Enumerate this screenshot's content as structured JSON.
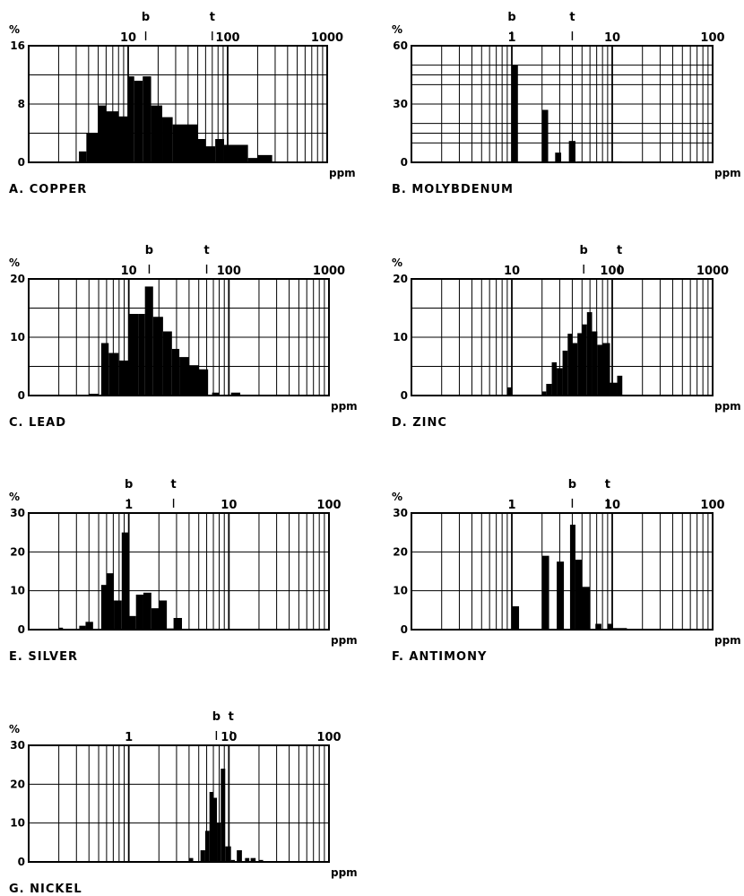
{
  "chart_data": [
    {
      "type": "bar",
      "title": "A. COPPER",
      "ylabel": "%",
      "xlabel": "ppm",
      "x_scale": "log",
      "xlim": [
        1,
        1000
      ],
      "ylim": [
        0,
        16
      ],
      "ytick_labels": [
        "0",
        "8",
        "16"
      ],
      "ytick_values": [
        0,
        8,
        16
      ],
      "xtick_labels": [
        "10",
        "100",
        "1000"
      ],
      "xtick_values": [
        10,
        100,
        1000
      ],
      "markers": [
        {
          "label": "b",
          "x": 15
        },
        {
          "label": "t",
          "x": 70
        }
      ],
      "bins": [
        {
          "x0": 3.2,
          "x1": 3.8,
          "y": 1.5
        },
        {
          "x0": 3.8,
          "x1": 5.0,
          "y": 4
        },
        {
          "x0": 5.0,
          "x1": 6.0,
          "y": 7.8
        },
        {
          "x0": 6.0,
          "x1": 8.0,
          "y": 7
        },
        {
          "x0": 8.0,
          "x1": 10,
          "y": 6.3
        },
        {
          "x0": 10,
          "x1": 11.5,
          "y": 11.8
        },
        {
          "x0": 11.5,
          "x1": 14,
          "y": 11.2
        },
        {
          "x0": 14,
          "x1": 17,
          "y": 11.8
        },
        {
          "x0": 17,
          "x1": 22,
          "y": 7.8
        },
        {
          "x0": 22,
          "x1": 28,
          "y": 6.2
        },
        {
          "x0": 28,
          "x1": 50,
          "y": 5.2
        },
        {
          "x0": 50,
          "x1": 60,
          "y": 3.2
        },
        {
          "x0": 60,
          "x1": 75,
          "y": 2.2
        },
        {
          "x0": 75,
          "x1": 92,
          "y": 3.2
        },
        {
          "x0": 92,
          "x1": 160,
          "y": 2.4
        },
        {
          "x0": 160,
          "x1": 200,
          "y": 0.6
        },
        {
          "x0": 200,
          "x1": 280,
          "y": 1.0
        }
      ]
    },
    {
      "type": "bar",
      "title": "B. MOLYBDENUM",
      "ylabel": "%",
      "xlabel": "ppm",
      "x_scale": "log",
      "xlim": [
        0.1,
        100
      ],
      "ylim": [
        0,
        60
      ],
      "ytick_labels": [
        "0",
        "30",
        "60"
      ],
      "ytick_values": [
        0,
        30,
        60
      ],
      "xtick_labels": [
        "1",
        "10",
        "100"
      ],
      "xtick_values": [
        1,
        10,
        100
      ],
      "markers": [
        {
          "label": "b",
          "x": 1.0
        },
        {
          "label": "t",
          "x": 4.0
        }
      ],
      "bins": [
        {
          "x0": 1.0,
          "x1": 1.15,
          "y": 50
        },
        {
          "x0": 2.0,
          "x1": 2.3,
          "y": 27
        },
        {
          "x0": 2.7,
          "x1": 3.1,
          "y": 5
        },
        {
          "x0": 3.7,
          "x1": 4.3,
          "y": 11
        },
        {
          "x0": 4.5,
          "x1": 9.8,
          "y": 0.5
        },
        {
          "x0": 10.2,
          "x1": 12.5,
          "y": 0.5
        }
      ]
    },
    {
      "type": "bar",
      "title": "C. LEAD",
      "ylabel": "%",
      "xlabel": "ppm",
      "x_scale": "log",
      "xlim": [
        1,
        1000
      ],
      "ylim": [
        0,
        20
      ],
      "ytick_labels": [
        "0",
        "10",
        "20"
      ],
      "ytick_values": [
        0,
        10,
        20
      ],
      "xtick_labels": [
        "10",
        "100",
        "1000"
      ],
      "xtick_values": [
        10,
        100,
        1000
      ],
      "markers": [
        {
          "label": "b",
          "x": 16
        },
        {
          "label": "t",
          "x": 60
        }
      ],
      "bins": [
        {
          "x0": 4.0,
          "x1": 5.0,
          "y": 0.3
        },
        {
          "x0": 5.3,
          "x1": 6.3,
          "y": 9
        },
        {
          "x0": 6.3,
          "x1": 7.9,
          "y": 7.3
        },
        {
          "x0": 7.9,
          "x1": 10,
          "y": 6
        },
        {
          "x0": 10,
          "x1": 12.6,
          "y": 14
        },
        {
          "x0": 12.6,
          "x1": 14.5,
          "y": 14
        },
        {
          "x0": 14.5,
          "x1": 17.5,
          "y": 18.7
        },
        {
          "x0": 17.5,
          "x1": 22,
          "y": 13.5
        },
        {
          "x0": 22,
          "x1": 27,
          "y": 11
        },
        {
          "x0": 27,
          "x1": 32,
          "y": 8
        },
        {
          "x0": 32,
          "x1": 40,
          "y": 6.6
        },
        {
          "x0": 40,
          "x1": 50,
          "y": 5.2
        },
        {
          "x0": 50,
          "x1": 62,
          "y": 4.5
        },
        {
          "x0": 68,
          "x1": 80,
          "y": 0.5
        },
        {
          "x0": 105,
          "x1": 130,
          "y": 0.5
        }
      ]
    },
    {
      "type": "bar",
      "title": "D. ZINC",
      "ylabel": "%",
      "xlabel": "ppm",
      "x_scale": "log",
      "xlim": [
        1,
        1000
      ],
      "ylim": [
        0,
        20
      ],
      "ytick_labels": [
        "0",
        "10",
        "20"
      ],
      "ytick_values": [
        0,
        10,
        20
      ],
      "xtick_labels": [
        "10",
        "100",
        "1000"
      ],
      "xtick_values": [
        10,
        100,
        1000
      ],
      "markers": [
        {
          "label": "b",
          "x": 52
        },
        {
          "label": "t",
          "x": 118
        }
      ],
      "bins": [
        {
          "x0": 9.0,
          "x1": 10,
          "y": 1.4
        },
        {
          "x0": 20,
          "x1": 22,
          "y": 0.7
        },
        {
          "x0": 22,
          "x1": 25,
          "y": 2
        },
        {
          "x0": 25,
          "x1": 28,
          "y": 5.7
        },
        {
          "x0": 28,
          "x1": 32,
          "y": 4.7
        },
        {
          "x0": 32,
          "x1": 36,
          "y": 7.7
        },
        {
          "x0": 36,
          "x1": 40,
          "y": 10.6
        },
        {
          "x0": 40,
          "x1": 45,
          "y": 9
        },
        {
          "x0": 45,
          "x1": 50,
          "y": 10.7
        },
        {
          "x0": 50,
          "x1": 56,
          "y": 12.2
        },
        {
          "x0": 56,
          "x1": 63,
          "y": 14.3
        },
        {
          "x0": 63,
          "x1": 71,
          "y": 11
        },
        {
          "x0": 71,
          "x1": 80,
          "y": 8.7
        },
        {
          "x0": 80,
          "x1": 95,
          "y": 9
        },
        {
          "x0": 95,
          "x1": 112,
          "y": 2.2
        },
        {
          "x0": 112,
          "x1": 126,
          "y": 3.4
        }
      ]
    },
    {
      "type": "bar",
      "title": "E. SILVER",
      "ylabel": "%",
      "xlabel": "ppm",
      "x_scale": "log",
      "xlim": [
        0.1,
        100
      ],
      "ylim": [
        0,
        30
      ],
      "ytick_labels": [
        "0",
        "10",
        "20",
        "30"
      ],
      "ytick_values": [
        0,
        10,
        20,
        30
      ],
      "xtick_labels": [
        "1",
        "10",
        "100"
      ],
      "xtick_values": [
        1,
        10,
        100
      ],
      "markers": [
        {
          "label": "b",
          "x": 1.0
        },
        {
          "label": "t",
          "x": 2.8
        }
      ],
      "bins": [
        {
          "x0": 0.2,
          "x1": 0.22,
          "y": 0.5
        },
        {
          "x0": 0.32,
          "x1": 0.37,
          "y": 1
        },
        {
          "x0": 0.37,
          "x1": 0.44,
          "y": 2
        },
        {
          "x0": 0.53,
          "x1": 0.6,
          "y": 11.5
        },
        {
          "x0": 0.6,
          "x1": 0.71,
          "y": 14.5
        },
        {
          "x0": 0.71,
          "x1": 0.85,
          "y": 7.5
        },
        {
          "x0": 0.85,
          "x1": 1.0,
          "y": 25
        },
        {
          "x0": 1.0,
          "x1": 1.18,
          "y": 3.5
        },
        {
          "x0": 1.18,
          "x1": 1.4,
          "y": 9
        },
        {
          "x0": 1.4,
          "x1": 1.68,
          "y": 9.5
        },
        {
          "x0": 1.68,
          "x1": 2.0,
          "y": 5.5
        },
        {
          "x0": 2.0,
          "x1": 2.4,
          "y": 7.5
        },
        {
          "x0": 2.4,
          "x1": 2.8,
          "y": 0.3
        },
        {
          "x0": 2.8,
          "x1": 3.4,
          "y": 3
        }
      ]
    },
    {
      "type": "bar",
      "title": "F. ANTIMONY",
      "ylabel": "%",
      "xlabel": "ppm",
      "x_scale": "log",
      "xlim": [
        0.1,
        100
      ],
      "ylim": [
        0,
        30
      ],
      "ytick_labels": [
        "0",
        "10",
        "20",
        "30"
      ],
      "ytick_values": [
        0,
        10,
        20,
        30
      ],
      "xtick_labels": [
        "1",
        "10",
        "100"
      ],
      "xtick_values": [
        1,
        10,
        100
      ],
      "markers": [
        {
          "label": "b",
          "x": 4.0
        },
        {
          "label": "t",
          "x": 9.0
        }
      ],
      "bins": [
        {
          "x0": 0.1,
          "x1": 0.12,
          "y": 0.2
        },
        {
          "x0": 1.0,
          "x1": 1.18,
          "y": 6
        },
        {
          "x0": 2.0,
          "x1": 2.35,
          "y": 19
        },
        {
          "x0": 2.8,
          "x1": 3.3,
          "y": 17.5
        },
        {
          "x0": 3.8,
          "x1": 4.3,
          "y": 27
        },
        {
          "x0": 4.3,
          "x1": 5.0,
          "y": 18
        },
        {
          "x0": 5.0,
          "x1": 6.0,
          "y": 11
        },
        {
          "x0": 6.8,
          "x1": 7.8,
          "y": 1.5
        },
        {
          "x0": 9.0,
          "x1": 10.2,
          "y": 1.5
        },
        {
          "x0": 10.2,
          "x1": 14,
          "y": 0.4
        }
      ]
    },
    {
      "type": "bar",
      "title": "G. NICKEL",
      "ylabel": "%",
      "xlabel": "ppm",
      "x_scale": "log",
      "xlim": [
        0.1,
        100
      ],
      "ylim": [
        0,
        30
      ],
      "ytick_labels": [
        "0",
        "10",
        "20",
        "30"
      ],
      "ytick_values": [
        0,
        10,
        20,
        30
      ],
      "xtick_labels": [
        "1",
        "10",
        "100"
      ],
      "xtick_values": [
        1,
        10,
        100
      ],
      "markers": [
        {
          "label": "b",
          "x": 7.5
        },
        {
          "label": "t",
          "x": 10.5
        }
      ],
      "bins": [
        {
          "x0": 4.0,
          "x1": 4.4,
          "y": 1
        },
        {
          "x0": 5.2,
          "x1": 5.8,
          "y": 3
        },
        {
          "x0": 5.8,
          "x1": 6.4,
          "y": 8
        },
        {
          "x0": 6.4,
          "x1": 7.0,
          "y": 18
        },
        {
          "x0": 7.0,
          "x1": 7.6,
          "y": 16.5
        },
        {
          "x0": 7.6,
          "x1": 8.3,
          "y": 10
        },
        {
          "x0": 8.3,
          "x1": 9.2,
          "y": 24
        },
        {
          "x0": 9.2,
          "x1": 10.5,
          "y": 4
        },
        {
          "x0": 10.5,
          "x1": 11.5,
          "y": 0.5
        },
        {
          "x0": 12,
          "x1": 13.5,
          "y": 3
        },
        {
          "x0": 14.5,
          "x1": 16,
          "y": 1
        },
        {
          "x0": 16.5,
          "x1": 18.5,
          "y": 1
        },
        {
          "x0": 20,
          "x1": 22,
          "y": 0.5
        }
      ]
    }
  ]
}
